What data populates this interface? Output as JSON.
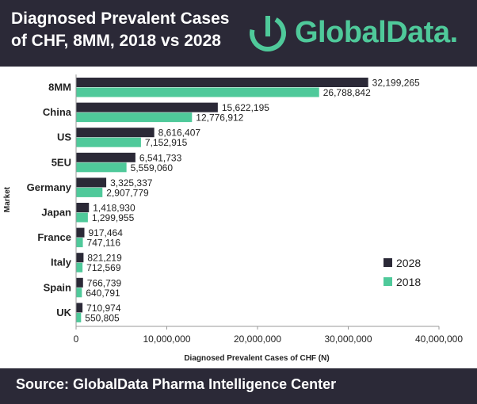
{
  "header": {
    "title": "Diagnosed Prevalent Cases of CHF, 8MM, 2018 vs 2028",
    "brand": "GlobalData."
  },
  "footer": {
    "source": "Source:  GlobalData Pharma Intelligence Center"
  },
  "colors": {
    "banner": "#2b2937",
    "series_2028": "#2b2937",
    "series_2018": "#4fc99a",
    "brand_accent": "#4fc99a"
  },
  "chart_data": {
    "type": "bar",
    "orientation": "horizontal",
    "xlabel": "Diagnosed Prevalent Cases of CHF (N)",
    "ylabel": "Market",
    "xlim": [
      0,
      40000000
    ],
    "xticks": [
      0,
      10000000,
      20000000,
      30000000,
      40000000
    ],
    "xtick_labels": [
      "0",
      "10,000,000",
      "20,000,000",
      "30,000,000",
      "40,000,000"
    ],
    "categories": [
      "8MM",
      "China",
      "US",
      "5EU",
      "Germany",
      "Japan",
      "France",
      "Italy",
      "Spain",
      "UK"
    ],
    "series": [
      {
        "name": "2028",
        "color": "#2b2937",
        "values": [
          32199265,
          15622195,
          8616407,
          6541733,
          3325337,
          1418930,
          917464,
          821219,
          766739,
          710974
        ],
        "labels": [
          "32,199,265",
          "15,622,195",
          "8,616,407",
          "6,541,733",
          "3,325,337",
          "1,418,930",
          "917,464",
          "821,219",
          "766,739",
          "710,974"
        ]
      },
      {
        "name": "2018",
        "color": "#4fc99a",
        "values": [
          26788842,
          12776912,
          7152915,
          5559060,
          2907779,
          1299955,
          747116,
          712569,
          640791,
          550805
        ],
        "labels": [
          "26,788,842",
          "12,776,912",
          "7,152,915",
          "5,559,060",
          "2,907,779",
          "1,299,955",
          "747,116",
          "712,569",
          "640,791",
          "550,805"
        ]
      }
    ],
    "legend_position": "right",
    "grid": false
  }
}
